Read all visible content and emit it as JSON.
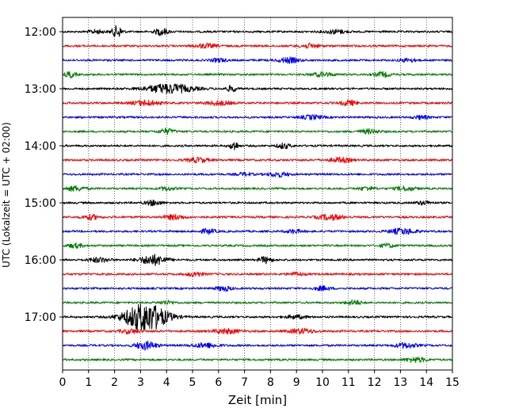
{
  "chart_data": {
    "type": "line",
    "title": "",
    "xlabel": "Zeit  [min]",
    "ylabel": "UTC (Lokalzeit = UTC + 02:00)",
    "xlim": [
      0,
      15
    ],
    "x_ticks": [
      "0",
      "1",
      "2",
      "3",
      "4",
      "5",
      "6",
      "7",
      "8",
      "9",
      "10",
      "11",
      "12",
      "13",
      "14",
      "15"
    ],
    "y_ticks": [
      "12:00",
      "13:00",
      "14:00",
      "15:00",
      "16:00",
      "17:00"
    ],
    "grid": "vertical dotted",
    "row_minutes": 15,
    "start_time": "12:00",
    "colors": [
      "#000000",
      "#ff0000",
      "#0000ff",
      "#008000"
    ],
    "rows": [
      {
        "time": "12:00",
        "color": "#000000",
        "events": [
          {
            "t": 2.1,
            "amp": 1.0,
            "w": 0.2
          },
          {
            "t": 3.8,
            "amp": 0.6,
            "w": 0.25
          },
          {
            "t": 1.3,
            "amp": 0.3,
            "w": 0.3
          },
          {
            "t": 10.5,
            "amp": 0.35,
            "w": 0.4
          }
        ]
      },
      {
        "time": "12:15",
        "color": "#ff0000",
        "events": [
          {
            "t": 5.5,
            "amp": 0.35,
            "w": 0.4
          },
          {
            "t": 9.5,
            "amp": 0.35,
            "w": 0.4
          }
        ]
      },
      {
        "time": "12:30",
        "color": "#0000ff",
        "events": [
          {
            "t": 8.7,
            "amp": 0.45,
            "w": 0.4
          },
          {
            "t": 6.0,
            "amp": 0.3,
            "w": 0.3
          },
          {
            "t": 13.3,
            "amp": 0.3,
            "w": 0.3
          }
        ]
      },
      {
        "time": "12:45",
        "color": "#008000",
        "events": [
          {
            "t": 0.3,
            "amp": 0.5,
            "w": 0.2
          },
          {
            "t": 10.0,
            "amp": 0.35,
            "w": 0.4
          },
          {
            "t": 12.3,
            "amp": 0.4,
            "w": 0.3
          }
        ]
      },
      {
        "time": "13:00",
        "color": "#000000",
        "events": [
          {
            "t": 4.1,
            "amp": 0.85,
            "w": 0.9
          },
          {
            "t": 6.5,
            "amp": 0.5,
            "w": 0.2
          }
        ]
      },
      {
        "time": "13:15",
        "color": "#ff0000",
        "events": [
          {
            "t": 3.2,
            "amp": 0.45,
            "w": 0.5
          },
          {
            "t": 6.0,
            "amp": 0.35,
            "w": 0.5
          },
          {
            "t": 11.0,
            "amp": 0.45,
            "w": 0.3
          }
        ]
      },
      {
        "time": "13:30",
        "color": "#0000ff",
        "events": [
          {
            "t": 9.6,
            "amp": 0.35,
            "w": 0.4
          },
          {
            "t": 13.8,
            "amp": 0.3,
            "w": 0.3
          }
        ]
      },
      {
        "time": "13:45",
        "color": "#008000",
        "events": [
          {
            "t": 4.0,
            "amp": 0.45,
            "w": 0.3
          },
          {
            "t": 11.8,
            "amp": 0.35,
            "w": 0.4
          }
        ]
      },
      {
        "time": "14:00",
        "color": "#000000",
        "events": [
          {
            "t": 6.6,
            "amp": 0.8,
            "w": 0.15
          },
          {
            "t": 8.5,
            "amp": 0.45,
            "w": 0.25
          }
        ]
      },
      {
        "time": "14:15",
        "color": "#ff0000",
        "events": [
          {
            "t": 5.2,
            "amp": 0.4,
            "w": 0.4
          },
          {
            "t": 10.7,
            "amp": 0.4,
            "w": 0.4
          }
        ]
      },
      {
        "time": "14:30",
        "color": "#0000ff",
        "events": [
          {
            "t": 8.3,
            "amp": 0.4,
            "w": 0.4
          },
          {
            "t": 7.0,
            "amp": 0.25,
            "w": 0.3
          }
        ]
      },
      {
        "time": "14:45",
        "color": "#008000",
        "events": [
          {
            "t": 0.5,
            "amp": 0.4,
            "w": 0.4
          },
          {
            "t": 4.0,
            "amp": 0.3,
            "w": 0.3
          },
          {
            "t": 11.7,
            "amp": 0.3,
            "w": 0.3
          },
          {
            "t": 13.2,
            "amp": 0.35,
            "w": 0.4
          }
        ]
      },
      {
        "time": "15:00",
        "color": "#000000",
        "events": [
          {
            "t": 3.5,
            "amp": 0.45,
            "w": 0.3
          },
          {
            "t": 13.9,
            "amp": 0.3,
            "w": 0.3
          }
        ]
      },
      {
        "time": "15:15",
        "color": "#ff0000",
        "events": [
          {
            "t": 1.1,
            "amp": 0.4,
            "w": 0.3
          },
          {
            "t": 4.3,
            "amp": 0.4,
            "w": 0.4
          },
          {
            "t": 10.3,
            "amp": 0.45,
            "w": 0.5
          }
        ]
      },
      {
        "time": "15:30",
        "color": "#0000ff",
        "events": [
          {
            "t": 5.6,
            "amp": 0.4,
            "w": 0.3
          },
          {
            "t": 8.9,
            "amp": 0.3,
            "w": 0.3
          },
          {
            "t": 13.1,
            "amp": 0.5,
            "w": 0.5
          }
        ]
      },
      {
        "time": "15:45",
        "color": "#008000",
        "events": [
          {
            "t": 0.5,
            "amp": 0.35,
            "w": 0.3
          },
          {
            "t": 12.5,
            "amp": 0.3,
            "w": 0.3
          }
        ]
      },
      {
        "time": "16:00",
        "color": "#000000",
        "events": [
          {
            "t": 3.5,
            "amp": 0.9,
            "w": 0.5
          },
          {
            "t": 1.4,
            "amp": 0.4,
            "w": 0.4
          },
          {
            "t": 7.8,
            "amp": 0.55,
            "w": 0.25
          }
        ]
      },
      {
        "time": "16:15",
        "color": "#ff0000",
        "events": [
          {
            "t": 5.1,
            "amp": 0.4,
            "w": 0.3
          },
          {
            "t": 9.0,
            "amp": 0.3,
            "w": 0.3
          }
        ]
      },
      {
        "time": "16:30",
        "color": "#0000ff",
        "events": [
          {
            "t": 6.2,
            "amp": 0.4,
            "w": 0.3
          },
          {
            "t": 10.0,
            "amp": 0.35,
            "w": 0.3
          }
        ]
      },
      {
        "time": "16:45",
        "color": "#008000",
        "events": [
          {
            "t": 4.0,
            "amp": 0.3,
            "w": 0.3
          },
          {
            "t": 11.2,
            "amp": 0.4,
            "w": 0.3
          }
        ]
      },
      {
        "time": "17:00",
        "color": "#000000",
        "events": [
          {
            "t": 3.2,
            "amp": 2.6,
            "w": 0.8
          },
          {
            "t": 9.0,
            "amp": 0.3,
            "w": 0.4
          }
        ]
      },
      {
        "time": "17:15",
        "color": "#ff0000",
        "events": [
          {
            "t": 6.3,
            "amp": 0.4,
            "w": 0.5
          },
          {
            "t": 9.2,
            "amp": 0.4,
            "w": 0.5
          },
          {
            "t": 2.6,
            "amp": 0.35,
            "w": 0.4
          }
        ]
      },
      {
        "time": "17:30",
        "color": "#0000ff",
        "events": [
          {
            "t": 3.2,
            "amp": 0.7,
            "w": 0.4
          },
          {
            "t": 5.5,
            "amp": 0.4,
            "w": 0.5
          },
          {
            "t": 13.2,
            "amp": 0.45,
            "w": 0.4
          }
        ]
      },
      {
        "time": "17:45",
        "color": "#008000",
        "events": [
          {
            "t": 13.6,
            "amp": 0.4,
            "w": 0.4
          }
        ]
      }
    ]
  }
}
